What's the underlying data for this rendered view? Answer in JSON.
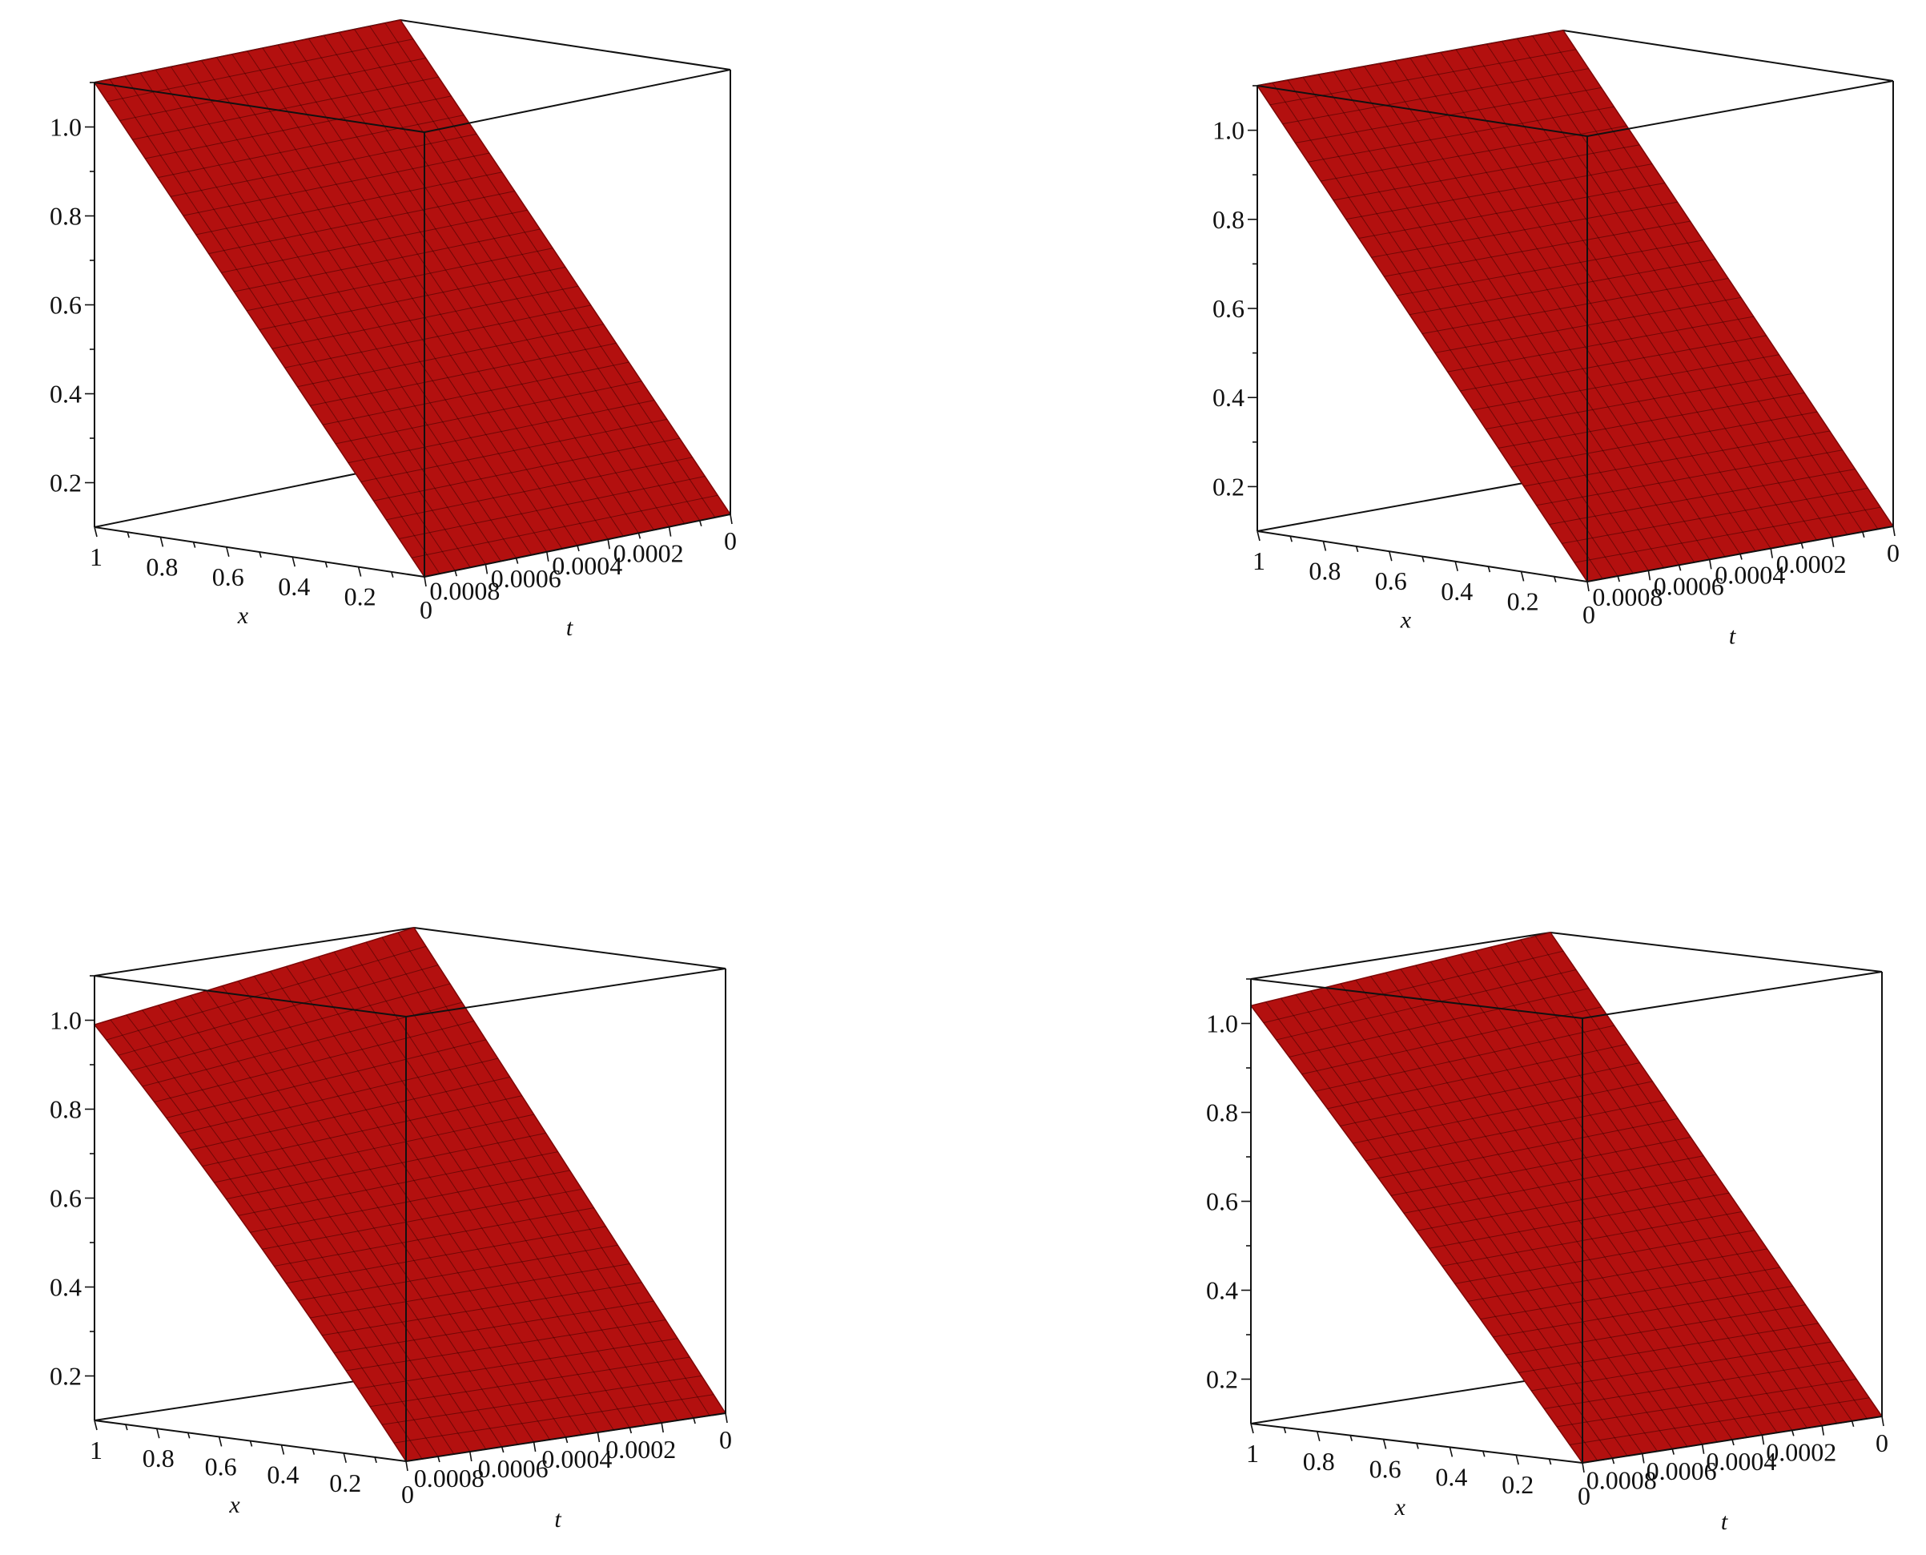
{
  "colors": {
    "surface": "#b3100f",
    "surface_dark": "#7e0707",
    "grid": "#3a0000",
    "box": "#111111"
  },
  "chart_data": [
    {
      "type": "surface3d",
      "panel": "top-left",
      "xlabel": "x",
      "ylabel": "t",
      "zlabel": "",
      "x_ticks": [
        "1",
        "0.8",
        "0.6",
        "0.4",
        "0.2"
      ],
      "t_ticks": [
        "0",
        "0.0008",
        "0.0006",
        "0.0004",
        "0.0002",
        "0"
      ],
      "z_ticks": [
        "1.0",
        "0.8",
        "0.6",
        "0.4",
        "0.2"
      ],
      "x_range": [
        0,
        1
      ],
      "t_range": [
        0,
        0.001
      ],
      "z_range": [
        0.1,
        1.1
      ],
      "corner_values": {
        "x0_t0": 0.1,
        "x0_t1": 0.1,
        "x1_t0": 1.1,
        "x1_t1": 1.1
      },
      "curvature": 0
    },
    {
      "type": "surface3d",
      "panel": "top-right",
      "xlabel": "x",
      "ylabel": "t",
      "zlabel": "",
      "x_ticks": [
        "1",
        "0.8",
        "0.6",
        "0.4",
        "0.2"
      ],
      "t_ticks": [
        "0",
        "0.0008",
        "0.0006",
        "0.0004",
        "0.0002",
        "0"
      ],
      "z_ticks": [
        "1.0",
        "0.8",
        "0.6",
        "0.4",
        "0.2"
      ],
      "x_range": [
        0,
        1
      ],
      "t_range": [
        0,
        0.001
      ],
      "z_range": [
        0.1,
        1.1
      ],
      "corner_values": {
        "x0_t0": 0.1,
        "x0_t1": 0.1,
        "x1_t0": 1.1,
        "x1_t1": 1.1
      },
      "curvature": 0
    },
    {
      "type": "surface3d",
      "panel": "bottom-left",
      "xlabel": "x",
      "ylabel": "t",
      "zlabel": "",
      "x_ticks": [
        "1",
        "0.8",
        "0.6",
        "0.4",
        "0.2"
      ],
      "t_ticks": [
        "0",
        "0.0008",
        "0.0006",
        "0.0004",
        "0.0002",
        "0"
      ],
      "z_ticks": [
        "1.0",
        "0.8",
        "0.6",
        "0.4",
        "0.2"
      ],
      "x_range": [
        0,
        1
      ],
      "t_range": [
        0,
        0.001
      ],
      "z_range": [
        0.1,
        1.1
      ],
      "corner_values": {
        "x0_t0": 0.1,
        "x0_t1": 0.1,
        "x1_t0": 1.1,
        "x1_t1": 0.99
      },
      "curvature": 0.06
    },
    {
      "type": "surface3d",
      "panel": "bottom-right",
      "xlabel": "x",
      "ylabel": "t",
      "zlabel": "",
      "x_ticks": [
        "1",
        "0.8",
        "0.6",
        "0.4",
        "0.2"
      ],
      "t_ticks": [
        "0",
        "0.0008",
        "0.0006",
        "0.0004",
        "0.0002",
        "0"
      ],
      "z_ticks": [
        "1.0",
        "0.8",
        "0.6",
        "0.4",
        "0.2"
      ],
      "x_range": [
        0,
        1
      ],
      "t_range": [
        0,
        0.001
      ],
      "z_range": [
        0.1,
        1.1
      ],
      "corner_values": {
        "x0_t0": 0.1,
        "x0_t1": 0.1,
        "x1_t0": 1.1,
        "x1_t1": 1.04
      },
      "curvature": 0.02
    }
  ]
}
